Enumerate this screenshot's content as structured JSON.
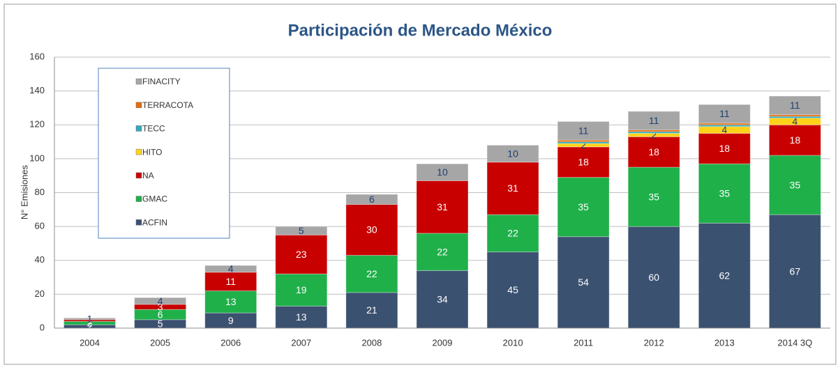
{
  "chart_data": {
    "type": "stacked_bar",
    "title": "Participación de Mercado México",
    "y_label": "N° Emisiones",
    "categories": [
      "2004",
      "2005",
      "2006",
      "2007",
      "2008",
      "2009",
      "2010",
      "2011",
      "2012",
      "2013",
      "2014 3Q"
    ],
    "series": [
      {
        "name": "ACFIN",
        "color": "#3b5170",
        "label_color": "#ffffff",
        "show_labels": true,
        "values": [
          2,
          5,
          9,
          13,
          21,
          34,
          45,
          54,
          60,
          62,
          67
        ]
      },
      {
        "name": "GMAC",
        "color": "#1fb04a",
        "label_color": "#ffffff",
        "show_labels": true,
        "values": [
          2,
          6,
          13,
          19,
          22,
          22,
          22,
          35,
          35,
          35,
          35
        ]
      },
      {
        "name": "NA",
        "color": "#c80000",
        "label_color": "#ffffff",
        "show_labels": true,
        "values": [
          1,
          3,
          11,
          23,
          30,
          31,
          31,
          18,
          18,
          18,
          18
        ]
      },
      {
        "name": "HITO",
        "color": "#ffd21a",
        "label_color": "#1f3f6e",
        "show_labels": true,
        "values": [
          null,
          null,
          null,
          null,
          null,
          null,
          null,
          2,
          2,
          4,
          4
        ]
      },
      {
        "name": "TECC",
        "color": "#31a9b8",
        "label_color": "#1f3f6e",
        "show_labels": false,
        "values": [
          null,
          null,
          null,
          null,
          null,
          null,
          null,
          1,
          1,
          1,
          1
        ]
      },
      {
        "name": "TERRACOTA",
        "color": "#e46c0a",
        "label_color": "#1f3f6e",
        "show_labels": false,
        "values": [
          null,
          null,
          null,
          null,
          null,
          null,
          null,
          1,
          1,
          1,
          1
        ]
      },
      {
        "name": "FINACITY",
        "color": "#a6a6a6",
        "label_color": "#1f3f6e",
        "show_labels": true,
        "values": [
          1,
          4,
          4,
          5,
          6,
          10,
          10,
          11,
          11,
          11,
          11
        ]
      }
    ],
    "ylim": [
      0,
      160
    ],
    "yticks": [
      0,
      20,
      40,
      60,
      80,
      100,
      120,
      140,
      160
    ],
    "grid": true,
    "legend": "upper left"
  }
}
